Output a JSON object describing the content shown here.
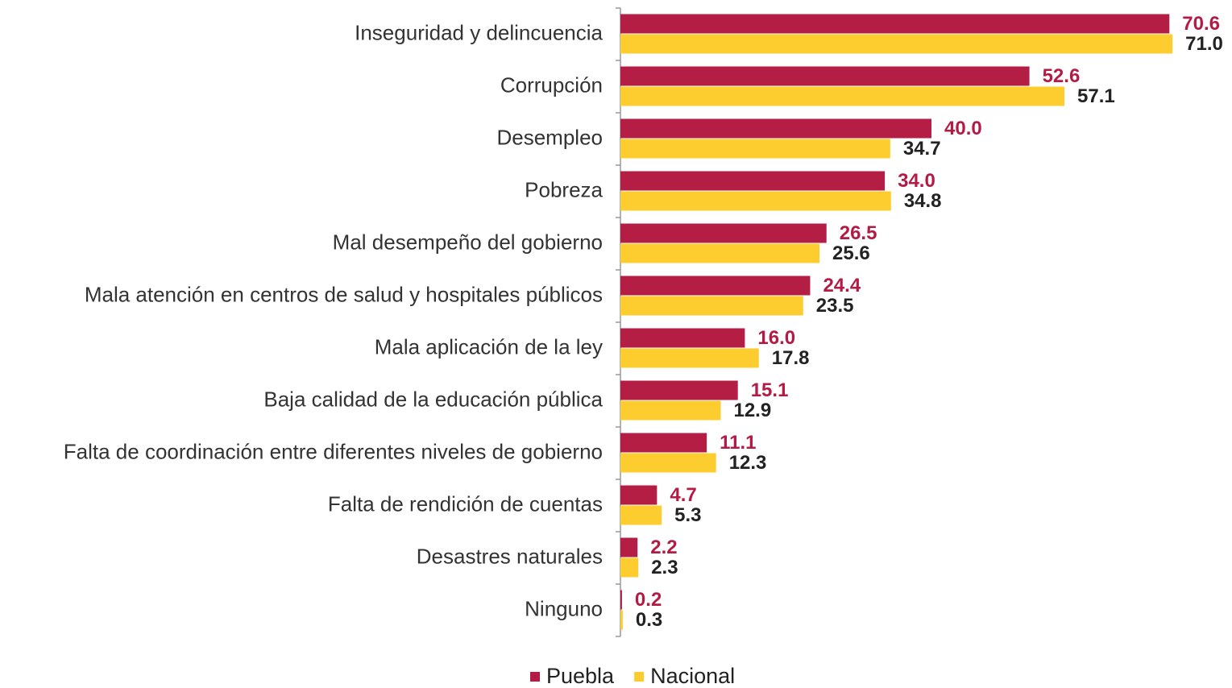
{
  "chart_data": {
    "type": "bar",
    "orientation": "horizontal",
    "categories": [
      "Inseguridad y delincuencia",
      "Corrupción",
      "Desempleo",
      "Pobreza",
      "Mal desempeño del gobierno",
      "Mala atención en centros de salud y hospitales públicos",
      "Mala aplicación de la ley",
      "Baja calidad de la educación pública",
      "Falta de coordinación entre diferentes niveles de gobierno",
      "Falta de rendición de cuentas",
      "Desastres naturales",
      "Ninguno"
    ],
    "series": [
      {
        "name": "Puebla",
        "color": "#b41e44",
        "label_color": "#b31b45",
        "values": [
          70.6,
          52.6,
          40.0,
          34.0,
          26.5,
          24.4,
          16.0,
          15.1,
          11.1,
          4.7,
          2.2,
          0.2
        ],
        "value_labels": [
          "70.6",
          "52.6",
          "40.0",
          "34.0",
          "26.5",
          "24.4",
          "16.0",
          "15.1",
          "11.1",
          "4.7",
          "2.2",
          "0.2"
        ]
      },
      {
        "name": "Nacional",
        "color": "#fdcd2f",
        "label_color": "#222222",
        "values": [
          71.0,
          57.1,
          34.7,
          34.8,
          25.6,
          23.5,
          17.8,
          12.9,
          12.3,
          5.3,
          2.3,
          0.3
        ],
        "value_labels": [
          "71.0",
          "57.1",
          "34.7",
          "34.8",
          "25.6",
          "23.5",
          "17.8",
          "12.9",
          "12.3",
          "5.3",
          "2.3",
          "0.3"
        ]
      }
    ],
    "legend": "bottom"
  }
}
